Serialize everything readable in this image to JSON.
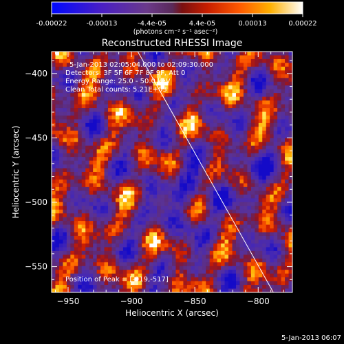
{
  "colorbar": {
    "ticks": [
      "-0.00022",
      "-0.00013",
      "-4.4e-05",
      "4.4e-05",
      "0.00013",
      "0.00022"
    ],
    "unit_label": "(photons cm⁻² s⁻¹ asec⁻²)",
    "min": -0.00022,
    "max": 0.00022
  },
  "chart_data": {
    "type": "heatmap",
    "title": "Reconstructed RHESSI Image",
    "xlabel": "Heliocentric X (arcsec)",
    "ylabel": "Heliocentric Y (arcsec)",
    "xlim": [
      -963,
      -773
    ],
    "ylim": [
      -570,
      -383
    ],
    "x_ticks": [
      -950,
      -900,
      -850,
      -800
    ],
    "y_ticks": [
      -550,
      -500,
      -450,
      -400
    ],
    "x_tick_labels": [
      "−950",
      "−900",
      "−850",
      "−800"
    ],
    "y_tick_labels": [
      "−550",
      "−500",
      "−450",
      "−400"
    ],
    "limb_line": {
      "x": [
        -895,
        -788
      ],
      "y": [
        -383,
        -570
      ]
    },
    "colormap": "fire-with-negative-blue",
    "annotations": {
      "time": "5-Jan-2013 02:05:04.000 to 02:09:30.000",
      "detectors": "Detectors: 3F 5F 6F 7F 8F 9F, Att 0",
      "energy": "Energy Range: 25.0 - 50.0 keV",
      "clean": "Clean    Total counts: 5.21E+03",
      "peak": "Position of Peak = [-919,-517]"
    },
    "peak": {
      "x": -919,
      "y": -517
    },
    "grid": false
  },
  "footer": {
    "timestamp": "5-Jan-2013 06:07"
  }
}
